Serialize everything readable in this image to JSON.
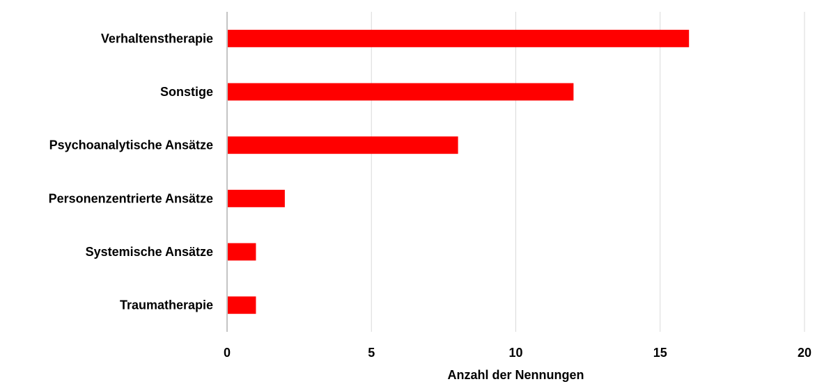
{
  "chart_data": {
    "type": "bar",
    "orientation": "horizontal",
    "categories": [
      "Verhaltenstherapie",
      "Sonstige",
      "Psychoanalytische Ansätze",
      "Personenzentrierte Ansätze",
      "Systemische Ansätze",
      "Traumatherapie"
    ],
    "values": [
      16,
      12,
      8,
      2,
      1,
      1
    ],
    "title": "",
    "xlabel": "Anzahl der Nennungen",
    "ylabel": "",
    "xlim": [
      0,
      20
    ],
    "xticks": [
      0,
      5,
      10,
      15,
      20
    ],
    "xtick_labels": [
      "0",
      "5",
      "10",
      "15",
      "20"
    ],
    "grid": "vertical",
    "legend": "none",
    "colors": {
      "bar": "#ff0000",
      "grid": "#d9d9d9",
      "axis": "#888888"
    }
  }
}
